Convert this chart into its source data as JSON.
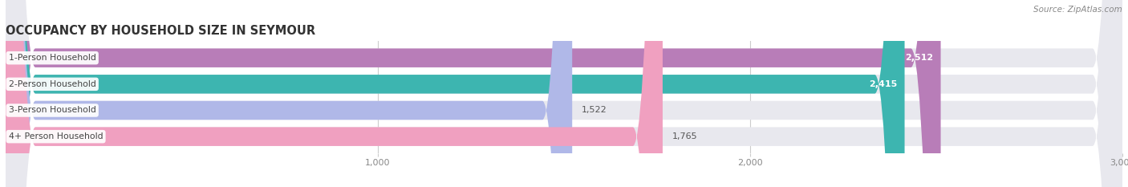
{
  "title": "OCCUPANCY BY HOUSEHOLD SIZE IN SEYMOUR",
  "source": "Source: ZipAtlas.com",
  "categories": [
    "1-Person Household",
    "2-Person Household",
    "3-Person Household",
    "4+ Person Household"
  ],
  "values": [
    2512,
    2415,
    1522,
    1765
  ],
  "bar_colors": [
    "#b87db8",
    "#3db5b0",
    "#b0b8e8",
    "#f0a0c0"
  ],
  "bar_bg_color": "#e8e8ee",
  "xlim_max": 3000,
  "xticks": [
    1000,
    2000,
    3000
  ],
  "xtick_labels": [
    "1,000",
    "2,000",
    "3,000"
  ],
  "title_fontsize": 10.5,
  "source_fontsize": 7.5,
  "background_color": "#ffffff",
  "label_box_color": "#ffffff",
  "value_label_color_inside": "#ffffff",
  "value_label_color_outside": "#555555",
  "category_label_color": "#444444"
}
